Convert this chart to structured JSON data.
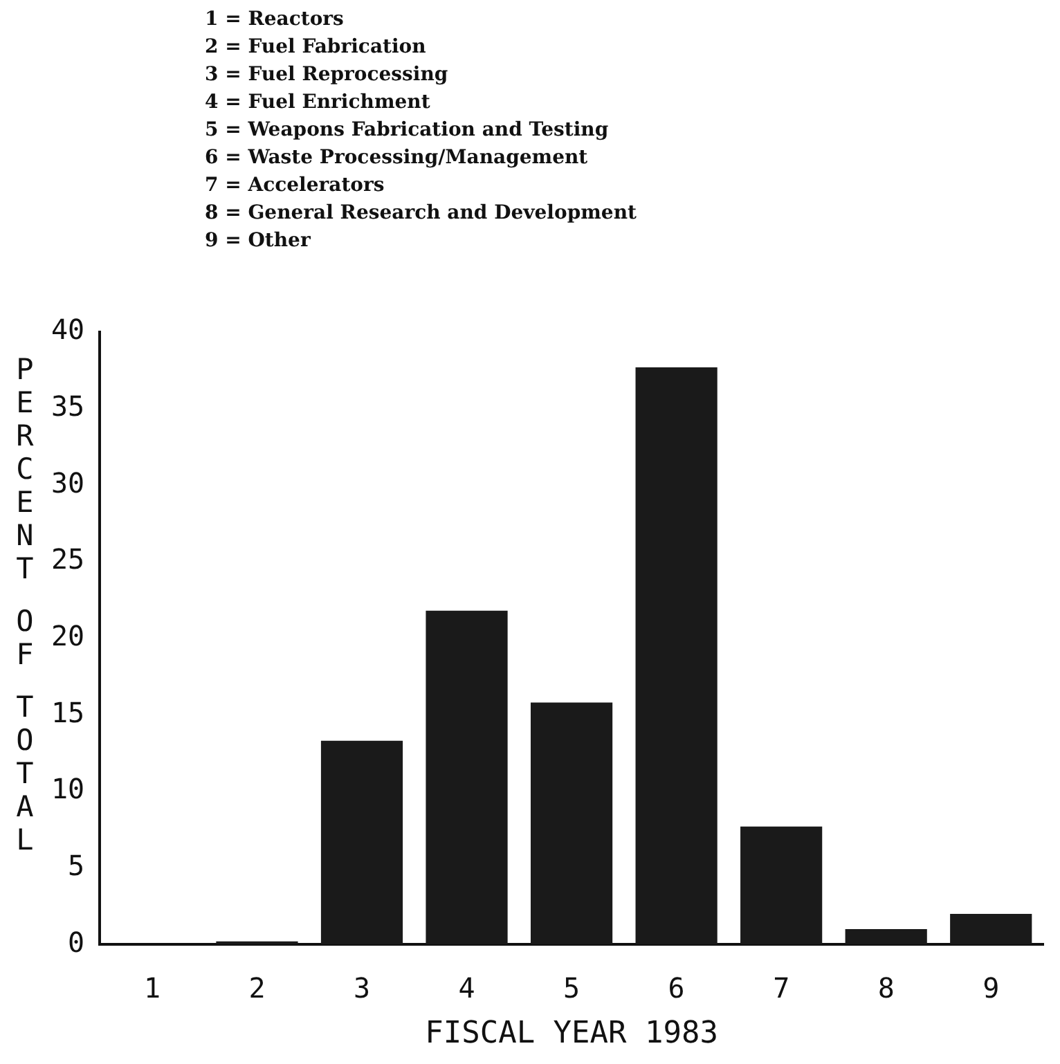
{
  "chart_data": {
    "type": "bar",
    "xlabel": "FISCAL YEAR 1983",
    "ylabel": "PERCENT OF TOTAL",
    "categories": [
      "1",
      "2",
      "3",
      "4",
      "5",
      "6",
      "7",
      "8",
      "9"
    ],
    "values": [
      0,
      0.2,
      13.3,
      21.8,
      15.8,
      37.7,
      7.7,
      1,
      2
    ],
    "color": "#1a1a1a",
    "ylim": [
      0,
      40
    ],
    "yticks": [
      0,
      5,
      10,
      15,
      20,
      25,
      30,
      35,
      40
    ],
    "grid": false,
    "legend": false,
    "annotations": [
      "1 = Reactors",
      "2 = Fuel Fabrication",
      "3 = Fuel Reprocessing",
      "4 = Fuel Enrichment",
      "5 = Weapons Fabrication and Testing",
      "6 = Waste Processing/Management",
      "7 = Accelerators",
      "8 = General Research and Development",
      "9 = Other"
    ]
  }
}
